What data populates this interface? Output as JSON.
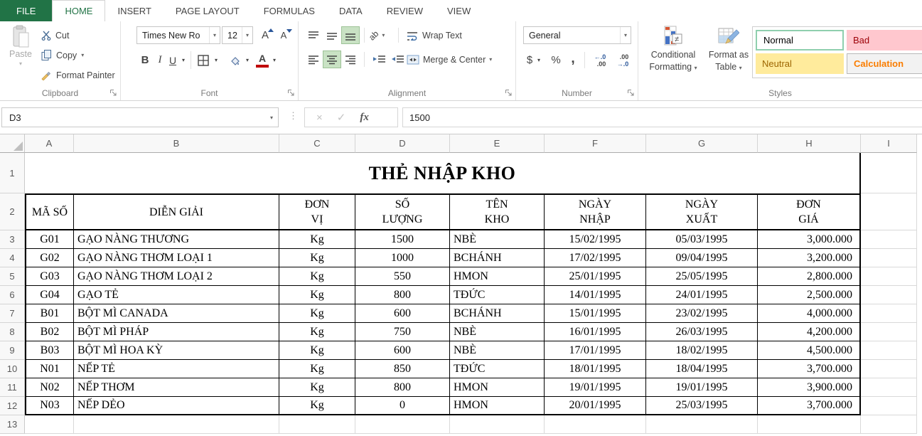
{
  "ribbon": {
    "tabs": [
      "FILE",
      "HOME",
      "INSERT",
      "PAGE LAYOUT",
      "FORMULAS",
      "DATA",
      "REVIEW",
      "VIEW"
    ],
    "active_tab": "HOME",
    "clipboard": {
      "paste": "Paste",
      "cut": "Cut",
      "copy": "Copy",
      "format_painter": "Format Painter",
      "label": "Clipboard"
    },
    "font": {
      "name": "Times New Ro",
      "size": "12",
      "bold": "B",
      "italic": "I",
      "underline": "U",
      "label": "Font"
    },
    "alignment": {
      "wrap_text": "Wrap Text",
      "merge_center": "Merge & Center",
      "label": "Alignment"
    },
    "number": {
      "format": "General",
      "currency": "$",
      "percent": "%",
      "comma": ",",
      "label": "Number"
    },
    "styles": {
      "conditional_formatting_line1": "Conditional",
      "conditional_formatting_line2": "Formatting",
      "format_as_table_line1": "Format as",
      "format_as_table_line2": "Table",
      "gallery": [
        "Normal",
        "Bad",
        "Neutral",
        "Calculation"
      ],
      "label": "Styles"
    }
  },
  "formula_bar": {
    "name_box": "D3",
    "value": "1500",
    "fx_label": "fx"
  },
  "sheet": {
    "column_letters": [
      "A",
      "B",
      "C",
      "D",
      "E",
      "F",
      "G",
      "H",
      "I"
    ],
    "row_numbers": [
      "1",
      "2",
      "3",
      "4",
      "5",
      "6",
      "7",
      "8",
      "9",
      "10",
      "11",
      "12",
      "13"
    ],
    "title": "THẺ NHẬP KHO",
    "headers": [
      "MÃ SỐ",
      "DIỄN GIẢI",
      "ĐƠN\nVỊ",
      "SỐ\nLƯỢNG",
      "TÊN\nKHO",
      "NGÀY\nNHẬP",
      "NGÀY\nXUẤT",
      "ĐƠN\nGIÁ"
    ],
    "rows": [
      [
        "G01",
        "GẠO NÀNG THƯƠNG",
        "Kg",
        "1500",
        "NBÈ",
        "15/02/1995",
        "05/03/1995",
        "3,000.000"
      ],
      [
        "G02",
        "GẠO NÀNG THƠM LOẠI 1",
        "Kg",
        "1000",
        "BCHÁNH",
        "17/02/1995",
        "09/04/1995",
        "3,200.000"
      ],
      [
        "G03",
        "GẠO NÀNG THƠM LOẠI 2",
        "Kg",
        "550",
        "HMON",
        "25/01/1995",
        "25/05/1995",
        "2,800.000"
      ],
      [
        "G04",
        "GẠO TẺ",
        "Kg",
        "800",
        "TĐỨC",
        "14/01/1995",
        "24/01/1995",
        "2,500.000"
      ],
      [
        "B01",
        "BỘT MÌ CANADA",
        "Kg",
        "600",
        "BCHÁNH",
        "15/01/1995",
        "23/02/1995",
        "4,000.000"
      ],
      [
        "B02",
        "BỘT MÌ PHÁP",
        "Kg",
        "750",
        "NBÈ",
        "16/01/1995",
        "26/03/1995",
        "4,200.000"
      ],
      [
        "B03",
        "BỘT MÌ HOA KỲ",
        "Kg",
        "600",
        "NBÈ",
        "17/01/1995",
        "18/02/1995",
        "4,500.000"
      ],
      [
        "N01",
        "NẾP TẺ",
        "Kg",
        "850",
        "TĐỨC",
        "18/01/1995",
        "18/04/1995",
        "3,700.000"
      ],
      [
        "N02",
        "NẾP THƠM",
        "Kg",
        "800",
        "HMON",
        "19/01/1995",
        "19/01/1995",
        "3,900.000"
      ],
      [
        "N03",
        "NẾP DẺO",
        "Kg",
        "0",
        "HMON",
        "20/01/1995",
        "25/03/1995",
        "3,700.000"
      ]
    ],
    "active_cell": "D3"
  },
  "icons": {
    "dropdown_arrow": "▾",
    "cancel": "×",
    "enter": "✓",
    "splitter": "⋮",
    "font_letter": "A",
    "orientation_text": "ab",
    "inc_decimal_top": "←.0",
    "inc_decimal_bottom": ".00",
    "dec_decimal_top": ".00",
    "dec_decimal_bottom": "→.0"
  },
  "colors": {
    "excel_green": "#217346",
    "toggle_green": "#c9e2c4",
    "bad_bg": "#ffc7ce",
    "bad_text": "#9c0006",
    "neutral_bg": "#ffeb9c",
    "neutral_text": "#9c6500",
    "calculation_text": "#fa7d00",
    "normal_border": "#8fcfae",
    "font_color_red": "#c00000"
  }
}
